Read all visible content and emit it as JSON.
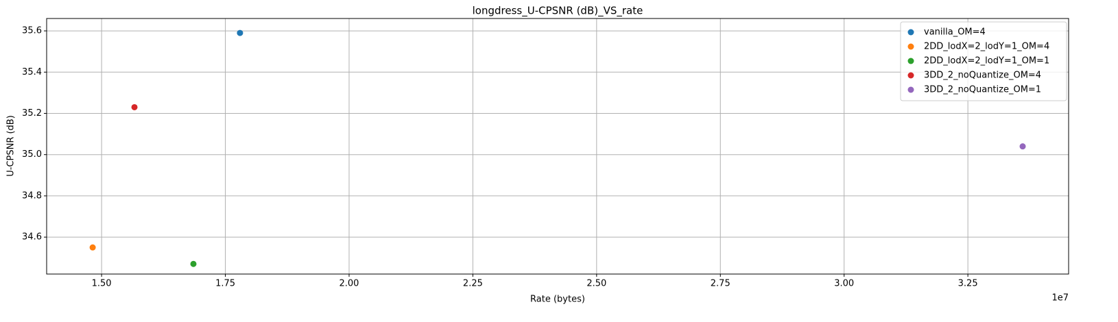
{
  "chart_data": {
    "type": "scatter",
    "title": "longdress_U-CPSNR (dB)_VS_rate",
    "xlabel": "Rate (bytes)",
    "ylabel": "U-CPSNR (dB)",
    "x_offset_label": "1e7",
    "xlim": [
      13890000,
      34535000
    ],
    "ylim": [
      34.421,
      35.66
    ],
    "xticks": [
      {
        "value": 15000000,
        "label": "1.50"
      },
      {
        "value": 17500000,
        "label": "1.75"
      },
      {
        "value": 20000000,
        "label": "2.00"
      },
      {
        "value": 22500000,
        "label": "2.25"
      },
      {
        "value": 25000000,
        "label": "2.50"
      },
      {
        "value": 27500000,
        "label": "2.75"
      },
      {
        "value": 30000000,
        "label": "3.00"
      },
      {
        "value": 32500000,
        "label": "3.25"
      }
    ],
    "yticks": [
      34.6,
      34.8,
      {
        "value": 35.0,
        "label": "35.0"
      },
      35.2,
      35.4,
      35.6
    ],
    "grid": true,
    "legend": "upper right",
    "series": [
      {
        "name": "vanilla_OM=4",
        "color": "#1f77b4",
        "x": [
          17796000
        ],
        "values": [
          35.59
        ]
      },
      {
        "name": "2DD_lodX=2_lodY=1_OM=4",
        "color": "#ff7f0e",
        "x": [
          14820000
        ],
        "values": [
          34.55
        ]
      },
      {
        "name": "2DD_lodX=2_lodY=1_OM=1",
        "color": "#2ca02c",
        "x": [
          16855000
        ],
        "values": [
          34.47
        ]
      },
      {
        "name": "3DD_2_noQuantize_OM=4",
        "color": "#d62728",
        "x": [
          15664000
        ],
        "values": [
          35.23
        ]
      },
      {
        "name": "3DD_2_noQuantize_OM=1",
        "color": "#9467bd",
        "x": [
          33607000
        ],
        "values": [
          35.04
        ]
      }
    ]
  }
}
